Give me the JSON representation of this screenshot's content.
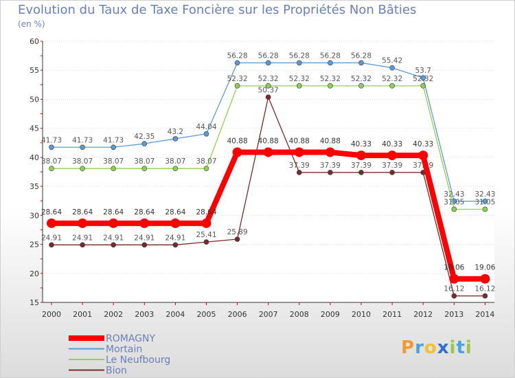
{
  "title": "Evolution du Taux de Taxe Foncière sur les Propriétés Non Bâties",
  "subtitle": "(en %)",
  "logo": "Proxiti",
  "chart_data": {
    "type": "line",
    "categories": [
      "2000",
      "2001",
      "2002",
      "2003",
      "2004",
      "2005",
      "2006",
      "2007",
      "2008",
      "2009",
      "2010",
      "2011",
      "2012",
      "2013",
      "2014"
    ],
    "ylim": [
      15,
      60
    ],
    "yticks": [
      15,
      20,
      25,
      30,
      35,
      40,
      45,
      50,
      55,
      60
    ],
    "series": [
      {
        "name": "ROMAGNY",
        "color": "#ff0000",
        "values": [
          28.64,
          28.64,
          28.64,
          28.64,
          28.64,
          28.64,
          40.88,
          40.88,
          40.88,
          40.88,
          40.33,
          40.33,
          40.33,
          19.06,
          19.06
        ],
        "labels": [
          "28.64",
          "28.64",
          "28.64",
          "28.64",
          "28.64",
          "28.64",
          "40.88",
          "40.88",
          "40.88",
          "40.88",
          "40.33",
          "40.33",
          "40.33",
          "19.06",
          "19.06"
        ]
      },
      {
        "name": "Mortain",
        "color": "#5b9bd5",
        "values": [
          41.73,
          41.73,
          41.73,
          42.35,
          43.2,
          44.04,
          56.28,
          56.28,
          56.28,
          56.28,
          56.28,
          55.42,
          53.7,
          32.43,
          32.43
        ],
        "labels": [
          "41.73",
          "41.73",
          "41.73",
          "42.35",
          "43.2",
          "44.04",
          "56.28",
          "56.28",
          "56.28",
          "56.28",
          "56.28",
          "55.42",
          "53.7",
          "32.43",
          "32.43"
        ]
      },
      {
        "name": "Le Neufbourg",
        "color": "#8fd14f",
        "values": [
          38.07,
          38.07,
          38.07,
          38.07,
          38.07,
          38.07,
          52.32,
          52.32,
          52.32,
          52.32,
          52.32,
          52.32,
          52.32,
          31.05,
          31.05
        ],
        "labels": [
          "38.07",
          "38.07",
          "38.07",
          "38.07",
          "38.07",
          "38.07",
          "52.32",
          "52.32",
          "52.32",
          "52.32",
          "52.32",
          "52.32",
          "52.32",
          "31.05",
          "31.05"
        ]
      },
      {
        "name": "Bion",
        "color": "#7b2a2a",
        "values": [
          24.91,
          24.91,
          24.91,
          24.91,
          24.91,
          25.41,
          25.89,
          50.37,
          37.39,
          37.39,
          37.39,
          37.39,
          37.39,
          16.12,
          16.12
        ],
        "labels": [
          "24.91",
          "24.91",
          "24.91",
          "24.91",
          "24.91",
          "25.41",
          "25.89",
          "50.37",
          "37.39",
          "37.39",
          "37.39",
          "37.39",
          "37.39",
          "16.12",
          "16.12"
        ]
      }
    ]
  }
}
